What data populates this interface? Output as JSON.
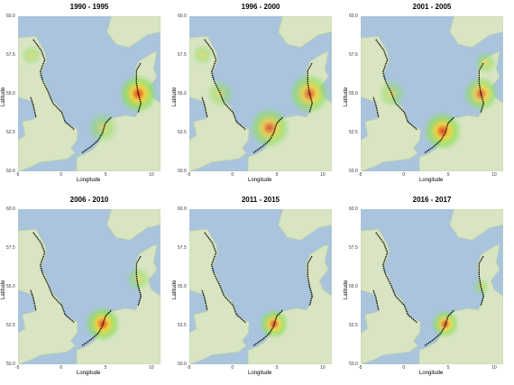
{
  "panels": [
    {
      "title": "1990 - 1995"
    },
    {
      "title": "1996 - 2000"
    },
    {
      "title": "2001 - 2005"
    },
    {
      "title": "2006 - 2010"
    },
    {
      "title": "2011 - 2015"
    },
    {
      "title": "2016 - 2017"
    }
  ],
  "axes": {
    "xlabel": "Longitude",
    "ylabel": "Latitude",
    "xticks": [
      "-5",
      "0",
      "5",
      "10"
    ],
    "yticks": [
      "60.0",
      "57.5",
      "55.0",
      "52.5",
      "50.0"
    ]
  },
  "colors": {
    "sea": "#a9c4dc",
    "land": "#d8e4c2",
    "land_dark": "#c2d6a8",
    "heat_low": "#8ee05a",
    "heat_mid": "#f2d23a",
    "heat_high": "#e63c1c",
    "track": "#111111"
  },
  "hotspots": [
    [
      {
        "lon": 8.5,
        "lat": 55.0,
        "i": 1.0,
        "r": 2.2
      },
      {
        "lon": 4.5,
        "lat": 52.8,
        "i": 0.45,
        "r": 1.8
      },
      {
        "lon": -3.5,
        "lat": 57.5,
        "i": 0.25,
        "r": 1.2
      }
    ],
    [
      {
        "lon": 8.5,
        "lat": 55.0,
        "i": 0.75,
        "r": 2.3
      },
      {
        "lon": 4.0,
        "lat": 52.8,
        "i": 0.7,
        "r": 2.3
      },
      {
        "lon": -1.5,
        "lat": 55.0,
        "i": 0.35,
        "r": 1.6
      },
      {
        "lon": -3.5,
        "lat": 57.5,
        "i": 0.3,
        "r": 1.2
      }
    ],
    [
      {
        "lon": 4.2,
        "lat": 52.6,
        "i": 0.95,
        "r": 2.2
      },
      {
        "lon": 8.5,
        "lat": 55.0,
        "i": 0.65,
        "r": 2.0
      },
      {
        "lon": 9.0,
        "lat": 57.0,
        "i": 0.4,
        "r": 1.3
      },
      {
        "lon": -1.5,
        "lat": 55.0,
        "i": 0.35,
        "r": 1.6
      }
    ],
    [
      {
        "lon": 4.5,
        "lat": 52.6,
        "i": 0.95,
        "r": 2.0
      },
      {
        "lon": 8.5,
        "lat": 55.5,
        "i": 0.35,
        "r": 1.4
      }
    ],
    [
      {
        "lon": 4.5,
        "lat": 52.6,
        "i": 0.8,
        "r": 1.7
      }
    ],
    [
      {
        "lon": 4.5,
        "lat": 52.6,
        "i": 0.75,
        "r": 1.6
      },
      {
        "lon": 8.5,
        "lat": 55.0,
        "i": 0.25,
        "r": 1.0
      }
    ]
  ]
}
